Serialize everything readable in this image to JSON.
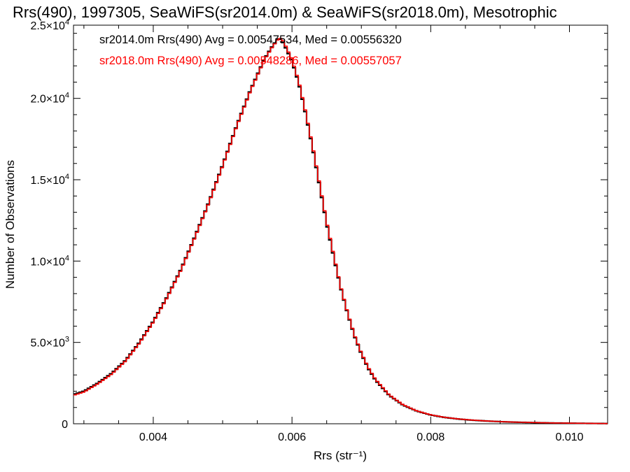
{
  "chart_data": {
    "type": "line",
    "title": "Rrs(490), 1997305, SeaWiFS(sr2014.0m) & SeaWiFS(sr2018.0m), Mesotrophic",
    "xlabel": "Rrs (str⁻¹)",
    "ylabel": "Number of Observations",
    "xlim": [
      0.00285,
      0.01055
    ],
    "ylim": [
      0,
      24500
    ],
    "x_ticks": [
      {
        "value": 0.004,
        "label": "0.004"
      },
      {
        "value": 0.006,
        "label": "0.006"
      },
      {
        "value": 0.008,
        "label": "0.008"
      },
      {
        "value": 0.01,
        "label": "0.010"
      }
    ],
    "y_ticks": [
      {
        "value": 0,
        "mant": "0",
        "exp": ""
      },
      {
        "value": 5000,
        "mant": "5.0×10",
        "exp": "3"
      },
      {
        "value": 10000,
        "mant": "1.0×10",
        "exp": "4"
      },
      {
        "value": 15000,
        "mant": "1.5×10",
        "exp": "4"
      },
      {
        "value": 20000,
        "mant": "2.0×10",
        "exp": "4"
      },
      {
        "value": 24500,
        "mant": "2.5×10",
        "exp": "4"
      }
    ],
    "legend_position": "top-left",
    "series": [
      {
        "name": "sr2014.0m",
        "color": "#000000",
        "stat_text": "sr2014.0m Rrs(490) Avg = 0.00547534, Med = 0.00556320",
        "x": [
          0.00285,
          0.003,
          0.0032,
          0.0034,
          0.0036,
          0.0038,
          0.004,
          0.0042,
          0.0044,
          0.0046,
          0.0048,
          0.005,
          0.0052,
          0.0054,
          0.0056,
          0.0057,
          0.0058,
          0.00585,
          0.0059,
          0.006,
          0.0061,
          0.0062,
          0.0063,
          0.0064,
          0.0065,
          0.0066,
          0.0067,
          0.0068,
          0.0069,
          0.007,
          0.0071,
          0.0072,
          0.0074,
          0.0076,
          0.0078,
          0.008,
          0.0082,
          0.0084,
          0.0086,
          0.0088,
          0.009,
          0.0092,
          0.0094,
          0.0096,
          0.0098,
          0.01,
          0.0102,
          0.0104,
          0.01055
        ],
        "y": [
          1800,
          2000,
          2500,
          3100,
          3900,
          5000,
          6300,
          7800,
          9500,
          11500,
          13600,
          15900,
          18300,
          20500,
          22400,
          23100,
          23700,
          23600,
          23200,
          22300,
          20900,
          19000,
          16900,
          14600,
          12300,
          10300,
          8400,
          6800,
          5400,
          4300,
          3400,
          2700,
          1750,
          1150,
          780,
          540,
          390,
          290,
          220,
          170,
          130,
          100,
          80,
          60,
          45,
          35,
          25,
          18,
          12
        ]
      },
      {
        "name": "sr2018.0m",
        "color": "#ff0000",
        "stat_text": "sr2018.0m Rrs(490) Avg = 0.00548286, Med = 0.00557057",
        "x": [
          0.00285,
          0.003,
          0.0032,
          0.0034,
          0.0036,
          0.0038,
          0.004,
          0.0042,
          0.0044,
          0.0046,
          0.0048,
          0.005,
          0.0052,
          0.0054,
          0.0056,
          0.0057,
          0.0058,
          0.00585,
          0.0059,
          0.006,
          0.0061,
          0.0062,
          0.0063,
          0.0064,
          0.0065,
          0.0066,
          0.0067,
          0.0068,
          0.0069,
          0.007,
          0.0071,
          0.0072,
          0.0074,
          0.0076,
          0.0078,
          0.008,
          0.0082,
          0.0084,
          0.0086,
          0.0088,
          0.009,
          0.0092,
          0.0094,
          0.0096,
          0.0098,
          0.01,
          0.0102,
          0.0104,
          0.01055
        ],
        "y": [
          1750,
          1950,
          2450,
          3050,
          3850,
          4950,
          6250,
          7750,
          9450,
          11450,
          13550,
          15850,
          18250,
          20450,
          22350,
          23050,
          23650,
          23700,
          23300,
          22400,
          21000,
          19100,
          17000,
          14700,
          12400,
          10400,
          8450,
          6850,
          5450,
          4350,
          3450,
          2750,
          1780,
          1170,
          790,
          550,
          395,
          295,
          225,
          172,
          132,
          102,
          82,
          62,
          46,
          36,
          26,
          19,
          13
        ]
      }
    ]
  }
}
